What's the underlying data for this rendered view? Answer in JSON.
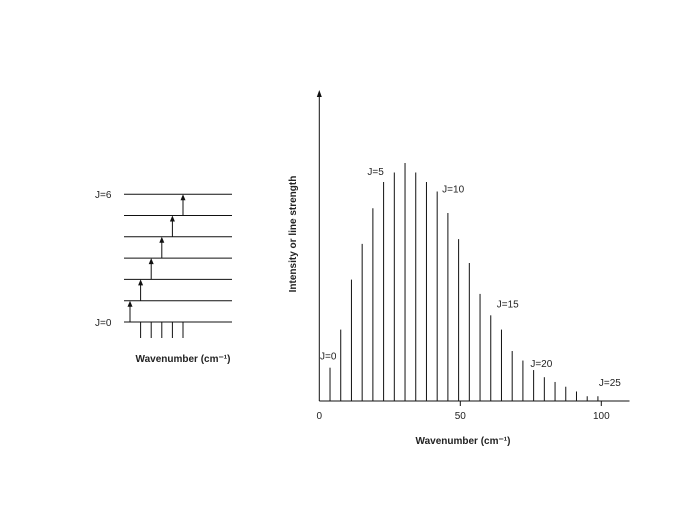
{
  "level_diagram": {
    "top_label": "J=6",
    "bottom_label": "J=0",
    "levels": [
      0,
      1,
      2,
      3,
      4,
      5,
      6
    ],
    "xlabel": "Wavenumber (cm⁻¹)"
  },
  "chart_data": {
    "type": "bar",
    "xlabel": "Wavenumber (cm⁻¹)",
    "ylabel": "Intensity or line strength",
    "xlim": [
      0,
      110
    ],
    "ylim": [
      0,
      125
    ],
    "xticks": [
      0,
      50,
      100
    ],
    "xtick_labels": [
      "0",
      "50",
      "100"
    ],
    "grid": false,
    "lines": {
      "J": [
        0,
        1,
        2,
        3,
        4,
        5,
        6,
        7,
        8,
        9,
        10,
        11,
        12,
        13,
        14,
        15,
        16,
        17,
        18,
        19,
        20,
        21,
        22,
        23,
        24,
        25
      ],
      "x": [
        3.8,
        7.6,
        11.4,
        15.2,
        19,
        22.8,
        26.6,
        30.4,
        34.2,
        38,
        41.8,
        45.6,
        49.4,
        53.2,
        57,
        60.8,
        64.6,
        68.4,
        72.2,
        76,
        79.8,
        83.6,
        87.4,
        91.2,
        95,
        98.8
      ],
      "values": [
        14,
        30,
        51,
        66,
        81,
        92,
        96,
        100,
        96,
        92,
        88,
        79,
        68,
        58,
        45,
        36,
        30,
        21,
        17,
        13,
        10,
        8,
        6,
        4,
        2,
        2
      ]
    },
    "annotations": [
      {
        "text": "J=0",
        "J": 0
      },
      {
        "text": "J=5",
        "J": 5
      },
      {
        "text": "J=10",
        "J": 10
      },
      {
        "text": "J=15",
        "J": 15
      },
      {
        "text": "J=20",
        "J": 20
      },
      {
        "text": "J=25",
        "J": 25
      }
    ]
  }
}
